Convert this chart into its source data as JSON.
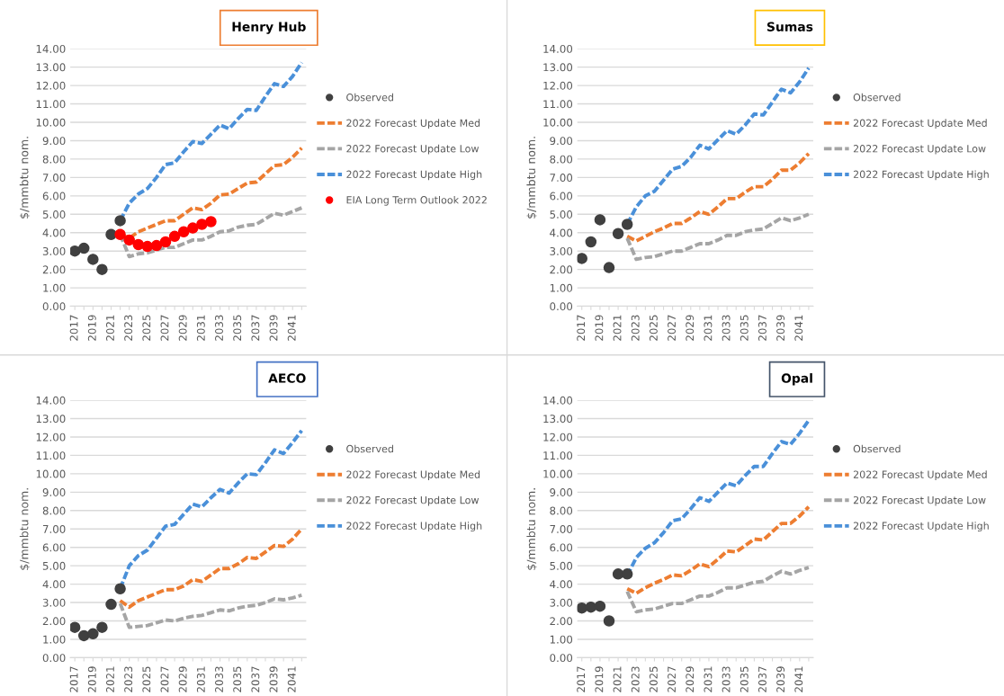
{
  "chart_data": [
    {
      "type": "line",
      "title": "Henry Hub",
      "ylabel": "$/mmbtu nom.",
      "categories": [
        "2017",
        null,
        "2019",
        null,
        "2021",
        null,
        "2023",
        null,
        "2025",
        null,
        "2027",
        null,
        "2029",
        null,
        "2031",
        null,
        "2033",
        null,
        "2035",
        null,
        "2037",
        null,
        "2039",
        null,
        "2041",
        null
      ],
      "ylim": [
        0,
        14
      ],
      "yticks": [
        {
          "value": 0,
          "label": "0.00"
        },
        {
          "value": 1,
          "label": "1.00"
        },
        {
          "value": 2,
          "label": "2.00"
        },
        {
          "value": 3,
          "label": "3.00"
        },
        {
          "value": 4,
          "label": "4.00"
        },
        {
          "value": 5,
          "label": "5.00"
        },
        {
          "value": 6,
          "label": "6.00"
        },
        {
          "value": 7,
          "label": "7.00"
        },
        {
          "value": 8,
          "label": "8.00"
        },
        {
          "value": 9,
          "label": "9.00"
        },
        {
          "value": 10,
          "label": "10.00"
        },
        {
          "value": 11,
          "label": "11.00"
        },
        {
          "value": 12,
          "label": "12.00"
        },
        {
          "value": 13,
          "label": "13.00"
        },
        {
          "value": 14,
          "label": "14.00"
        }
      ],
      "grid": "y",
      "legend": "right",
      "series": [
        {
          "name": "Observed",
          "type": "scatter",
          "marker": "circle",
          "color": "#404040",
          "values": [
            3.0,
            3.15,
            2.55,
            2.0,
            3.9,
            4.65,
            null,
            null,
            null,
            null,
            null,
            null,
            null,
            null,
            null,
            null,
            null,
            null,
            null,
            null,
            null,
            null,
            null,
            null,
            null,
            null
          ]
        },
        {
          "name": "2022 Forecast Update Med",
          "line_style": "dashed",
          "color": "#ed7d31",
          "values": [
            null,
            null,
            null,
            null,
            null,
            3.9,
            3.7,
            4.05,
            4.25,
            4.45,
            4.65,
            4.65,
            5.0,
            5.35,
            5.25,
            5.6,
            6.05,
            6.1,
            6.4,
            6.7,
            6.75,
            7.2,
            7.65,
            7.7,
            8.1,
            8.6
          ]
        },
        {
          "name": "2022 Forecast Update Low",
          "line_style": "dashed",
          "color": "#a5a5a5",
          "values": [
            null,
            null,
            null,
            null,
            null,
            3.9,
            2.7,
            2.85,
            2.9,
            3.05,
            3.2,
            3.2,
            3.4,
            3.6,
            3.6,
            3.8,
            4.05,
            4.1,
            4.3,
            4.4,
            4.45,
            4.75,
            5.05,
            4.95,
            5.15,
            5.35
          ]
        },
        {
          "name": "2022 Forecast Update High",
          "line_style": "dashed",
          "color": "#4a90d9",
          "values": [
            null,
            null,
            null,
            null,
            null,
            4.65,
            5.6,
            6.1,
            6.4,
            7.0,
            7.7,
            7.8,
            8.4,
            8.95,
            8.85,
            9.35,
            9.85,
            9.65,
            10.2,
            10.7,
            10.65,
            11.4,
            12.1,
            11.95,
            12.5,
            13.25
          ]
        },
        {
          "name": "EIA Long Term Outlook 2022",
          "type": "scatter",
          "marker": "circle",
          "color": "#ff0000",
          "values": [
            null,
            null,
            null,
            null,
            null,
            3.9,
            3.6,
            3.35,
            3.25,
            3.3,
            3.5,
            3.8,
            4.05,
            4.25,
            4.45,
            4.6,
            null,
            null,
            null,
            null,
            null,
            null,
            null,
            null,
            null,
            null
          ]
        }
      ]
    },
    {
      "type": "line",
      "title": "Sumas",
      "ylabel": "$/mmbtu nom.",
      "categories": [
        "2017",
        null,
        "2019",
        null,
        "2021",
        null,
        "2023",
        null,
        "2025",
        null,
        "2027",
        null,
        "2029",
        null,
        "2031",
        null,
        "2033",
        null,
        "2035",
        null,
        "2037",
        null,
        "2039",
        null,
        "2041",
        null
      ],
      "ylim": [
        0,
        14
      ],
      "yticks": [
        {
          "value": 0,
          "label": "0.00"
        },
        {
          "value": 1,
          "label": "1.00"
        },
        {
          "value": 2,
          "label": "2.00"
        },
        {
          "value": 3,
          "label": "3.00"
        },
        {
          "value": 4,
          "label": "4.00"
        },
        {
          "value": 5,
          "label": "5.00"
        },
        {
          "value": 6,
          "label": "6.00"
        },
        {
          "value": 7,
          "label": "7.00"
        },
        {
          "value": 8,
          "label": "8.00"
        },
        {
          "value": 9,
          "label": "9.00"
        },
        {
          "value": 10,
          "label": "10.00"
        },
        {
          "value": 11,
          "label": "11.00"
        },
        {
          "value": 12,
          "label": "12.00"
        },
        {
          "value": 13,
          "label": "13.00"
        },
        {
          "value": 14,
          "label": "14.00"
        }
      ],
      "grid": "y",
      "legend": "right",
      "series": [
        {
          "name": "Observed",
          "type": "scatter",
          "marker": "circle",
          "color": "#404040",
          "values": [
            2.6,
            3.5,
            4.7,
            2.1,
            3.95,
            4.45,
            null,
            null,
            null,
            null,
            null,
            null,
            null,
            null,
            null,
            null,
            null,
            null,
            null,
            null,
            null,
            null,
            null,
            null,
            null,
            null
          ]
        },
        {
          "name": "2022 Forecast Update Med",
          "line_style": "dashed",
          "color": "#ed7d31",
          "values": [
            null,
            null,
            null,
            null,
            null,
            3.8,
            3.55,
            3.8,
            4.05,
            4.25,
            4.5,
            4.5,
            4.8,
            5.15,
            5.0,
            5.4,
            5.85,
            5.85,
            6.2,
            6.5,
            6.5,
            6.9,
            7.4,
            7.4,
            7.8,
            8.3
          ]
        },
        {
          "name": "2022 Forecast Update Low",
          "line_style": "dashed",
          "color": "#a5a5a5",
          "values": [
            null,
            null,
            null,
            null,
            null,
            3.7,
            2.55,
            2.65,
            2.7,
            2.85,
            3.0,
            3.0,
            3.2,
            3.4,
            3.4,
            3.6,
            3.85,
            3.85,
            4.05,
            4.15,
            4.2,
            4.5,
            4.8,
            4.65,
            4.8,
            5.0
          ]
        },
        {
          "name": "2022 Forecast Update High",
          "line_style": "dashed",
          "color": "#4a90d9",
          "values": [
            null,
            null,
            null,
            null,
            null,
            4.45,
            5.4,
            6.0,
            6.25,
            6.85,
            7.45,
            7.6,
            8.1,
            8.75,
            8.55,
            9.05,
            9.55,
            9.35,
            9.85,
            10.45,
            10.4,
            11.1,
            11.8,
            11.6,
            12.2,
            12.95
          ]
        }
      ]
    },
    {
      "type": "line",
      "title": "AECO",
      "ylabel": "$/mmbtu nom.",
      "categories": [
        "2017",
        null,
        "2019",
        null,
        "2021",
        null,
        "2023",
        null,
        "2025",
        null,
        "2027",
        null,
        "2029",
        null,
        "2031",
        null,
        "2033",
        null,
        "2035",
        null,
        "2037",
        null,
        "2039",
        null,
        "2041",
        null
      ],
      "ylim": [
        0,
        14
      ],
      "yticks": [
        {
          "value": 0,
          "label": "0.00"
        },
        {
          "value": 1,
          "label": "1.00"
        },
        {
          "value": 2,
          "label": "2.00"
        },
        {
          "value": 3,
          "label": "3.00"
        },
        {
          "value": 4,
          "label": "4.00"
        },
        {
          "value": 5,
          "label": "5.00"
        },
        {
          "value": 6,
          "label": "6.00"
        },
        {
          "value": 7,
          "label": "7.00"
        },
        {
          "value": 8,
          "label": "8.00"
        },
        {
          "value": 9,
          "label": "9.00"
        },
        {
          "value": 10,
          "label": "10.00"
        },
        {
          "value": 11,
          "label": "11.00"
        },
        {
          "value": 12,
          "label": "12.00"
        },
        {
          "value": 13,
          "label": "13.00"
        },
        {
          "value": 14,
          "label": "14.00"
        }
      ],
      "grid": "y",
      "legend": "right",
      "series": [
        {
          "name": "Observed",
          "type": "scatter",
          "marker": "circle",
          "color": "#404040",
          "values": [
            1.65,
            1.2,
            1.3,
            1.65,
            2.9,
            3.75,
            null,
            null,
            null,
            null,
            null,
            null,
            null,
            null,
            null,
            null,
            null,
            null,
            null,
            null,
            null,
            null,
            null,
            null,
            null,
            null
          ]
        },
        {
          "name": "2022 Forecast Update Med",
          "line_style": "dashed",
          "color": "#ed7d31",
          "values": [
            null,
            null,
            null,
            null,
            null,
            3.1,
            2.75,
            3.1,
            3.3,
            3.5,
            3.7,
            3.7,
            3.9,
            4.25,
            4.15,
            4.5,
            4.85,
            4.85,
            5.1,
            5.45,
            5.4,
            5.75,
            6.1,
            6.05,
            6.45,
            7.0
          ]
        },
        {
          "name": "2022 Forecast Update Low",
          "line_style": "dashed",
          "color": "#a5a5a5",
          "values": [
            null,
            null,
            null,
            null,
            null,
            2.95,
            1.65,
            1.7,
            1.75,
            1.9,
            2.05,
            2.0,
            2.15,
            2.25,
            2.3,
            2.45,
            2.6,
            2.55,
            2.7,
            2.8,
            2.85,
            3.0,
            3.2,
            3.15,
            3.25,
            3.4
          ]
        },
        {
          "name": "2022 Forecast Update High",
          "line_style": "dashed",
          "color": "#4a90d9",
          "values": [
            null,
            null,
            null,
            null,
            null,
            3.75,
            5.0,
            5.55,
            5.85,
            6.5,
            7.15,
            7.25,
            7.8,
            8.35,
            8.2,
            8.7,
            9.15,
            8.95,
            9.5,
            10.0,
            9.95,
            10.6,
            11.3,
            11.1,
            11.7,
            12.35
          ]
        }
      ]
    },
    {
      "type": "line",
      "title": "Opal",
      "ylabel": "$/mmbtu nom.",
      "categories": [
        "2017",
        null,
        "2019",
        null,
        "2021",
        null,
        "2023",
        null,
        "2025",
        null,
        "2027",
        null,
        "2029",
        null,
        "2031",
        null,
        "2033",
        null,
        "2035",
        null,
        "2037",
        null,
        "2039",
        null,
        "2041",
        null
      ],
      "ylim": [
        0,
        14
      ],
      "yticks": [
        {
          "value": 0,
          "label": "0.00"
        },
        {
          "value": 1,
          "label": "1.00"
        },
        {
          "value": 2,
          "label": "2.00"
        },
        {
          "value": 3,
          "label": "3.00"
        },
        {
          "value": 4,
          "label": "4.00"
        },
        {
          "value": 5,
          "label": "5.00"
        },
        {
          "value": 6,
          "label": "6.00"
        },
        {
          "value": 7,
          "label": "7.00"
        },
        {
          "value": 8,
          "label": "8.00"
        },
        {
          "value": 9,
          "label": "9.00"
        },
        {
          "value": 10,
          "label": "10.00"
        },
        {
          "value": 11,
          "label": "11.00"
        },
        {
          "value": 12,
          "label": "12.00"
        },
        {
          "value": 13,
          "label": "13.00"
        },
        {
          "value": 14,
          "label": "14.00"
        }
      ],
      "grid": "y",
      "legend": "right",
      "series": [
        {
          "name": "Observed",
          "type": "scatter",
          "marker": "circle",
          "color": "#404040",
          "values": [
            2.7,
            2.75,
            2.8,
            2.0,
            4.55,
            4.55,
            null,
            null,
            null,
            null,
            null,
            null,
            null,
            null,
            null,
            null,
            null,
            null,
            null,
            null,
            null,
            null,
            null,
            null,
            null,
            null
          ]
        },
        {
          "name": "2022 Forecast Update Med",
          "line_style": "dashed",
          "color": "#ed7d31",
          "values": [
            null,
            null,
            null,
            null,
            null,
            3.75,
            3.5,
            3.8,
            4.05,
            4.25,
            4.5,
            4.45,
            4.75,
            5.1,
            4.95,
            5.35,
            5.8,
            5.75,
            6.1,
            6.45,
            6.4,
            6.85,
            7.3,
            7.3,
            7.7,
            8.2
          ]
        },
        {
          "name": "2022 Forecast Update Low",
          "line_style": "dashed",
          "color": "#a5a5a5",
          "values": [
            null,
            null,
            null,
            null,
            null,
            3.6,
            2.5,
            2.6,
            2.65,
            2.8,
            2.95,
            2.95,
            3.15,
            3.35,
            3.35,
            3.55,
            3.8,
            3.8,
            3.95,
            4.1,
            4.15,
            4.45,
            4.7,
            4.55,
            4.75,
            4.9
          ]
        },
        {
          "name": "2022 Forecast Update High",
          "line_style": "dashed",
          "color": "#4a90d9",
          "values": [
            null,
            null,
            null,
            null,
            null,
            4.45,
            5.45,
            5.95,
            6.25,
            6.8,
            7.45,
            7.55,
            8.1,
            8.7,
            8.5,
            9.0,
            9.5,
            9.35,
            9.9,
            10.4,
            10.4,
            11.1,
            11.75,
            11.6,
            12.2,
            12.9
          ]
        }
      ]
    }
  ]
}
